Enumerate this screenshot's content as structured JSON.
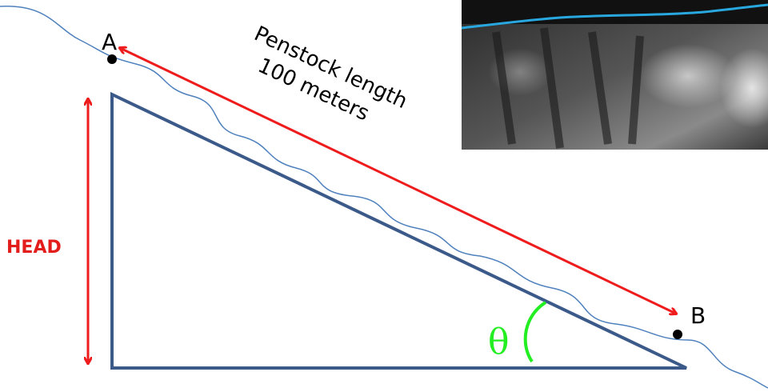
{
  "labels": {
    "point_a": "A",
    "point_b": "B",
    "penstock": [
      "Penstock length",
      "100 meters"
    ],
    "head": "HEAD",
    "angle": "θ"
  }
}
